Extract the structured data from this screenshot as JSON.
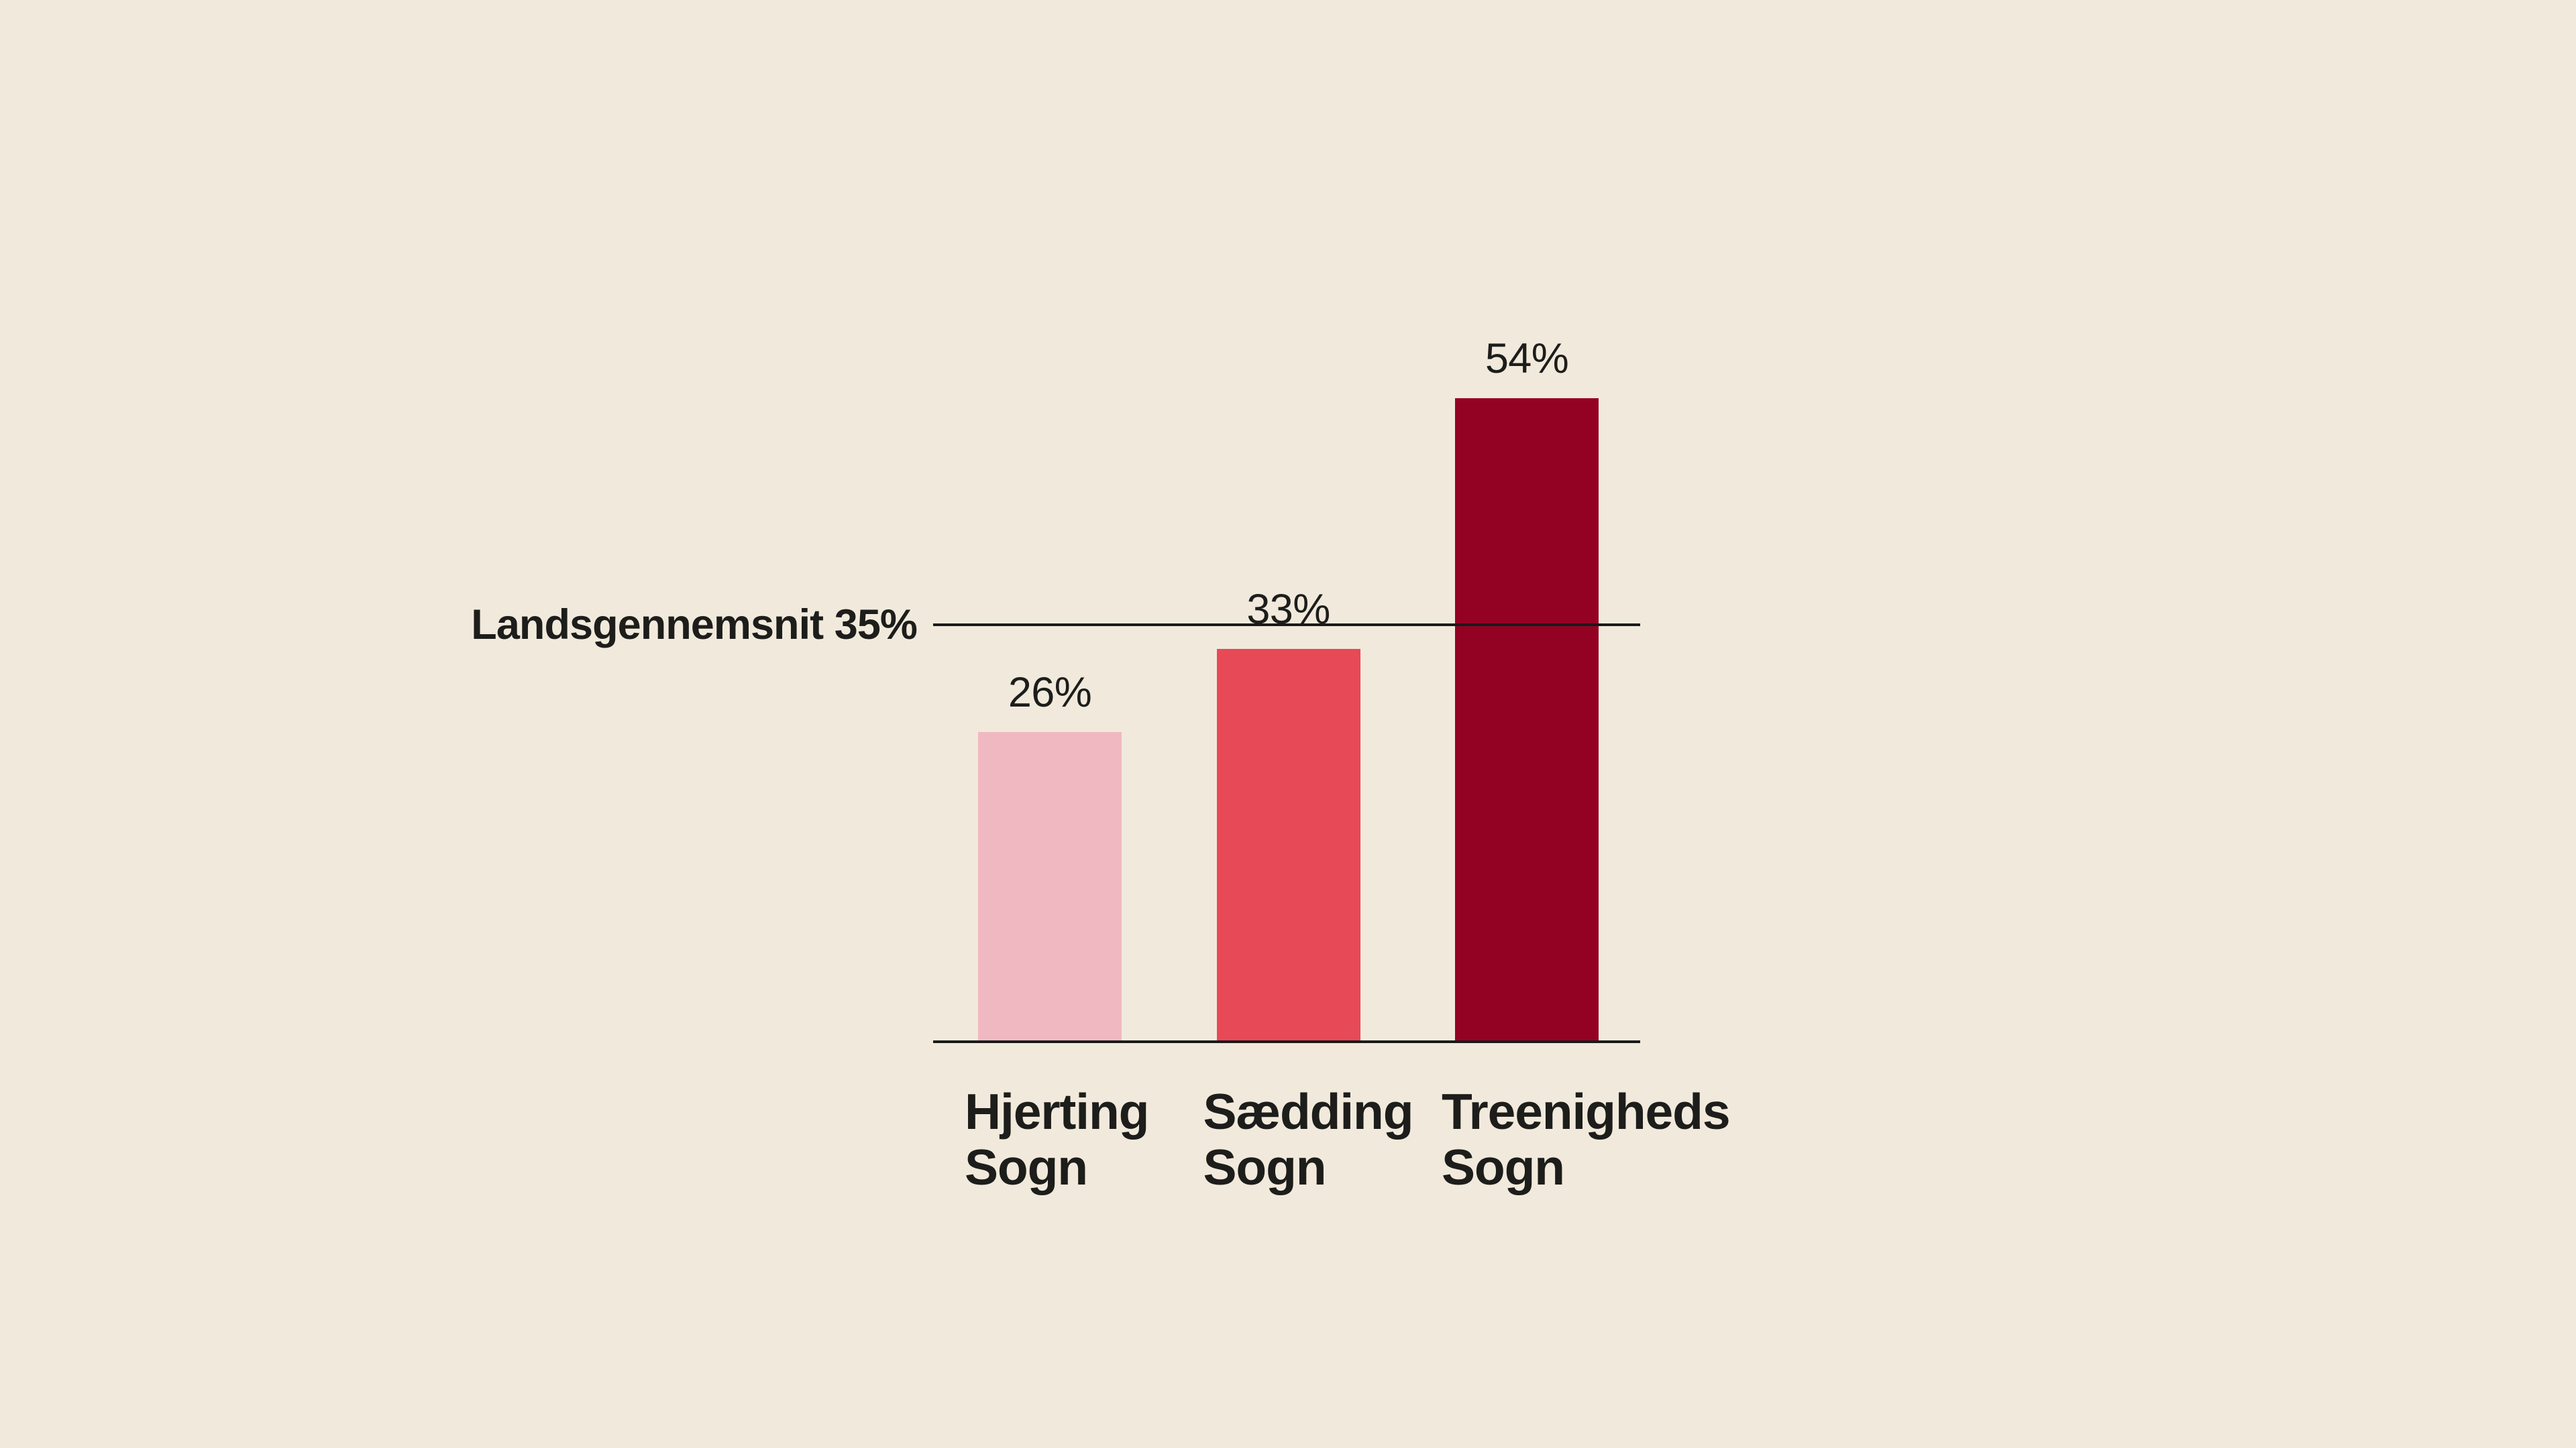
{
  "colors": {
    "background": "#f1eadc",
    "text": "#1d1d1b",
    "line": "#1a1a1a"
  },
  "chart_data": {
    "type": "bar",
    "title": "",
    "xlabel": "",
    "ylabel": "",
    "grid": false,
    "legend": false,
    "ylim": [
      0,
      60
    ],
    "categories": [
      "Hjerting Sogn",
      "Sædding Sogn",
      "Treenigheds Sogn"
    ],
    "category_lines": [
      [
        "Hjerting",
        "Sogn"
      ],
      [
        "Sædding",
        "Sogn"
      ],
      [
        "Treenigheds",
        "Sogn"
      ]
    ],
    "values": [
      26,
      33,
      54
    ],
    "value_labels": [
      "26%",
      "33%",
      "54%"
    ],
    "bar_colors": [
      "#f0b9c1",
      "#e74957",
      "#940223"
    ],
    "reference_line": {
      "value": 35,
      "label": "Landsgennemsnit 35%"
    }
  }
}
